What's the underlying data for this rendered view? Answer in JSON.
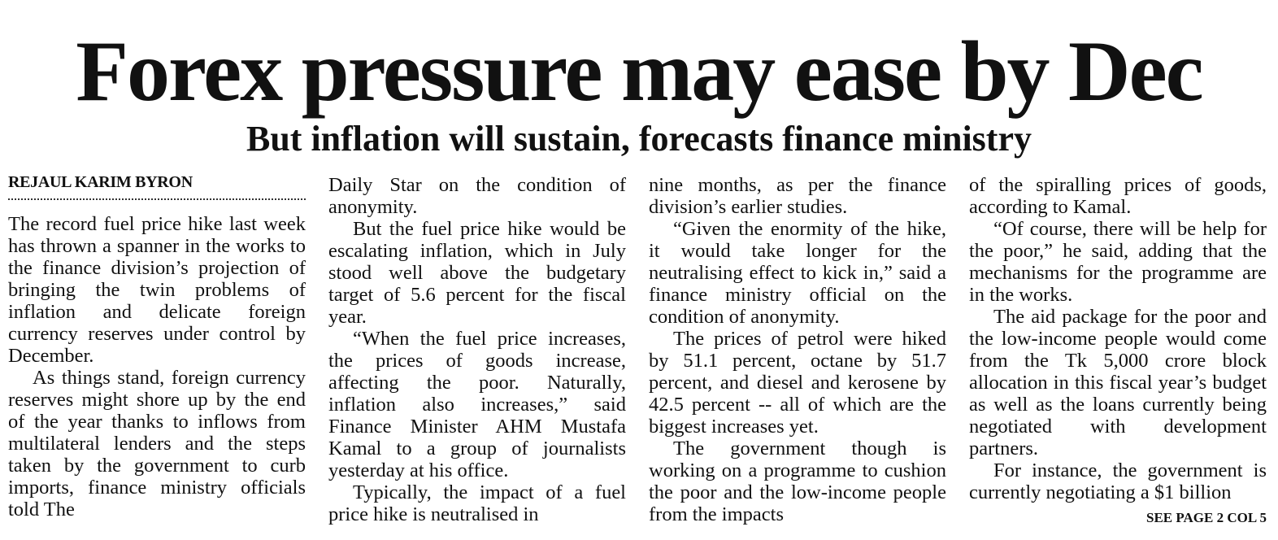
{
  "headline": "Forex pressure may ease by Dec",
  "subheadline": "But inflation will sustain, forecasts finance ministry",
  "byline": "REJAUL KARIM BYRON",
  "columns": [
    [
      "The record fuel price hike last week has thrown a spanner in the works to the finance division’s projection of bringing the twin problems of inflation and delicate foreign currency reserves under control by December.",
      "As things stand, foreign currency reserves might shore up by the end of the year thanks to inflows from multilateral lenders and the steps taken by the government to curb imports, finance ministry officials told The"
    ],
    [
      "Daily Star on the condition of anonymity.",
      "But the fuel price hike would be escalating inflation, which in July stood well above the budgetary target of 5.6 percent for the fiscal year.",
      "“When the fuel price increases, the prices of goods increase, affecting the poor. Naturally, inflation also increases,” said Finance Minister AHM Mustafa Kamal to a group of journalists yesterday at his office.",
      "Typically, the impact of a fuel price hike is neutralised in"
    ],
    [
      "nine months, as per the finance division’s earlier studies.",
      "“Given the enormity of the hike, it would take longer for the neutralising effect to kick in,” said a finance ministry official on the condition of anonymity.",
      "The prices of petrol were hiked by 51.1 percent, octane by 51.7 percent, and diesel and kerosene by 42.5 percent -- all of which are the biggest increases yet.",
      "The government though is working on a programme to cushion the poor and the low-income people from the impacts"
    ],
    [
      "of the spiralling prices of goods, according to Kamal.",
      "“Of course, there will be help for the poor,” he said, adding that the mechanisms for the programme are in the works.",
      "The aid package for the poor and the low-income people would come from the Tk 5,000 crore block allocation in this fiscal year’s budget as well as the loans currently being negotiated with development partners.",
      "For instance, the government is currently negotiating a $1 billion"
    ]
  ],
  "jump": "SEE PAGE 2 COL 5"
}
